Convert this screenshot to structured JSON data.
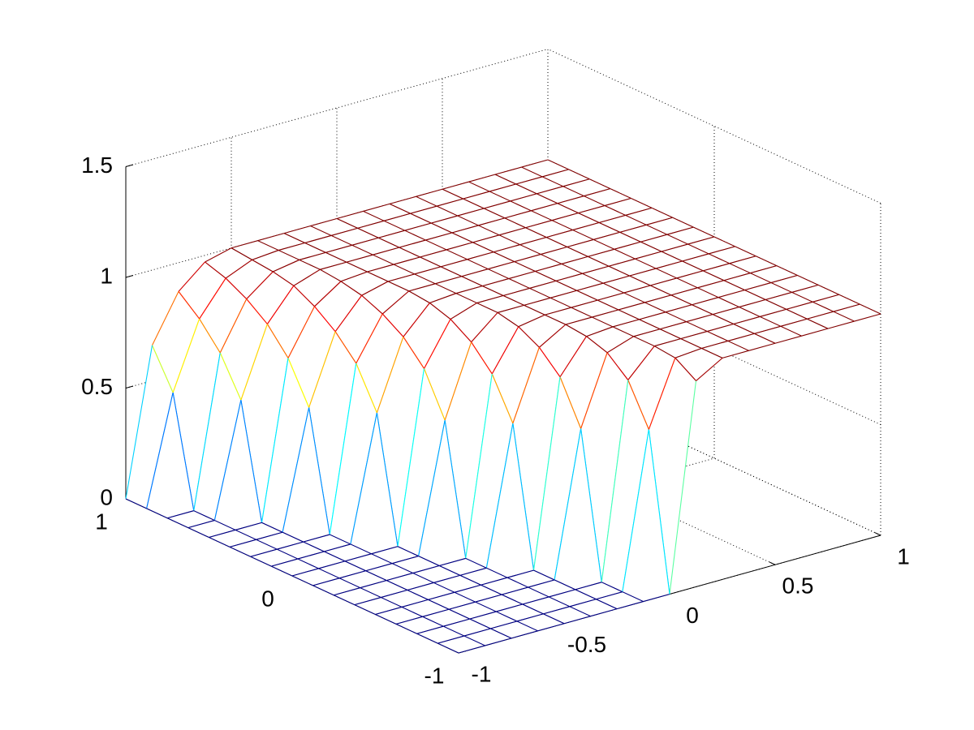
{
  "chart_data": {
    "type": "mesh",
    "x": [
      -1,
      -0.875,
      -0.75,
      -0.625,
      -0.5,
      -0.375,
      -0.25,
      -0.125,
      0,
      0.125,
      0.25,
      0.375,
      0.5,
      0.625,
      0.75,
      0.875,
      1
    ],
    "y": [
      -1,
      -0.875,
      -0.75,
      -0.625,
      -0.5,
      -0.375,
      -0.25,
      -0.125,
      0,
      0.125,
      0.25,
      0.375,
      0.5,
      0.625,
      0.75,
      0.875,
      1
    ],
    "z": [
      [
        0,
        0,
        0,
        0,
        0,
        0,
        0,
        0,
        0,
        0.93,
        1,
        1,
        1,
        1,
        1,
        1,
        1
      ],
      [
        0,
        0,
        0,
        0,
        0,
        0,
        0,
        0,
        0.7,
        0.99,
        1,
        1,
        1,
        1,
        1,
        1,
        1
      ],
      [
        0,
        0,
        0,
        0,
        0,
        0,
        0,
        0,
        0.88,
        1,
        1,
        1,
        1,
        1,
        1,
        1,
        1
      ],
      [
        0,
        0,
        0,
        0,
        0,
        0,
        0,
        0.65,
        0.96,
        1,
        1,
        1,
        1,
        1,
        1,
        1,
        1
      ],
      [
        0,
        0,
        0,
        0,
        0,
        0,
        0,
        0.84,
        0.99,
        1,
        1,
        1,
        1,
        1,
        1,
        1,
        1
      ],
      [
        0,
        0,
        0,
        0,
        0,
        0,
        0.62,
        0.93,
        1,
        1,
        1,
        1,
        1,
        1,
        1,
        1,
        1
      ],
      [
        0,
        0,
        0,
        0,
        0,
        0,
        0.8,
        0.98,
        1,
        1,
        1,
        1,
        1,
        1,
        1,
        1,
        1
      ],
      [
        0,
        0,
        0,
        0,
        0,
        0.58,
        0.9,
        1,
        1,
        1,
        1,
        1,
        1,
        1,
        1,
        1,
        1
      ],
      [
        0,
        0,
        0,
        0,
        0,
        0.77,
        0.96,
        1,
        1,
        1,
        1,
        1,
        1,
        1,
        1,
        1,
        1
      ],
      [
        0,
        0,
        0,
        0,
        0.56,
        0.87,
        0.99,
        1,
        1,
        1,
        1,
        1,
        1,
        1,
        1,
        1,
        1
      ],
      [
        0,
        0,
        0,
        0,
        0.74,
        0.93,
        1,
        1,
        1,
        1,
        1,
        1,
        1,
        1,
        1,
        1,
        1
      ],
      [
        0,
        0,
        0,
        0.53,
        0.84,
        0.97,
        1,
        1,
        1,
        1,
        1,
        1,
        1,
        1,
        1,
        1,
        1
      ],
      [
        0,
        0,
        0,
        0.71,
        0.91,
        0.99,
        1,
        1,
        1,
        1,
        1,
        1,
        1,
        1,
        1,
        1,
        1
      ],
      [
        0,
        0,
        0.51,
        0.82,
        0.96,
        1,
        1,
        1,
        1,
        1,
        1,
        1,
        1,
        1,
        1,
        1,
        1
      ],
      [
        0,
        0,
        0.68,
        0.89,
        0.98,
        1,
        1,
        1,
        1,
        1,
        1,
        1,
        1,
        1,
        1,
        1,
        1
      ],
      [
        0,
        0.49,
        0.79,
        0.94,
        0.99,
        1,
        1,
        1,
        1,
        1,
        1,
        1,
        1,
        1,
        1,
        1,
        1
      ],
      [
        0,
        0.66,
        0.87,
        0.97,
        1,
        1,
        1,
        1,
        1,
        1,
        1,
        1,
        1,
        1,
        1,
        1,
        1
      ]
    ],
    "xlim": [
      -1,
      1
    ],
    "ylim": [
      -1,
      1
    ],
    "zlim": [
      0,
      1.5
    ],
    "xticks": [
      -1,
      -0.5,
      0,
      0.5,
      1
    ],
    "yticks": [
      -1,
      0,
      1
    ],
    "zticks": [
      0,
      0.5,
      1,
      1.5
    ],
    "colormap": "jet",
    "grid": true
  }
}
